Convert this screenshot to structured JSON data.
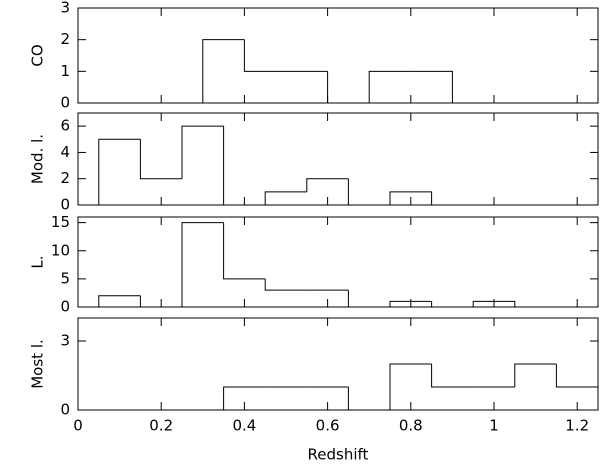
{
  "chart_data": [
    {
      "type": "histogram",
      "ylabel": "CO",
      "bins": [
        0.3,
        0.4,
        0.5,
        0.6,
        0.7,
        0.8,
        0.9
      ],
      "values": [
        2,
        1,
        1,
        0,
        1,
        1
      ],
      "color": "#000000",
      "xlim": [
        0,
        1.25
      ],
      "ylim": [
        0,
        3
      ],
      "yticks": [
        0,
        1,
        2,
        3
      ]
    },
    {
      "type": "histogram",
      "ylabel": "Mod. l.",
      "bins": [
        0.05,
        0.15,
        0.25,
        0.35,
        0.45,
        0.55,
        0.65,
        0.75,
        0.85
      ],
      "values": [
        5,
        2,
        6,
        0,
        1,
        2,
        0,
        1
      ],
      "color": "#000000",
      "xlim": [
        0,
        1.25
      ],
      "ylim": [
        0,
        7
      ],
      "yticks": [
        0,
        2,
        4,
        6
      ]
    },
    {
      "type": "histogram",
      "ylabel": "L.",
      "bins": [
        0.05,
        0.15,
        0.25,
        0.35,
        0.45,
        0.55,
        0.65,
        0.75,
        0.85,
        0.95,
        1.05
      ],
      "values": [
        2,
        0,
        15,
        5,
        3,
        3,
        0,
        1,
        0,
        1
      ],
      "color": "#000000",
      "xlim": [
        0,
        1.25
      ],
      "ylim": [
        0,
        16
      ],
      "yticks": [
        0,
        5,
        10,
        15
      ]
    },
    {
      "type": "histogram",
      "ylabel": "Most l.",
      "xlabel": "Redshift",
      "bins": [
        0.35,
        0.45,
        0.55,
        0.65,
        0.75,
        0.85,
        0.95,
        1.05,
        1.15,
        1.25
      ],
      "values": [
        1,
        1,
        1,
        0,
        2,
        1,
        1,
        2,
        1
      ],
      "color": "#000000",
      "xlim": [
        0,
        1.25
      ],
      "ylim": [
        0,
        4
      ],
      "yticks": [
        0,
        3
      ],
      "xticks": [
        0,
        0.2,
        0.4,
        0.6,
        0.8,
        1,
        1.2
      ]
    }
  ]
}
